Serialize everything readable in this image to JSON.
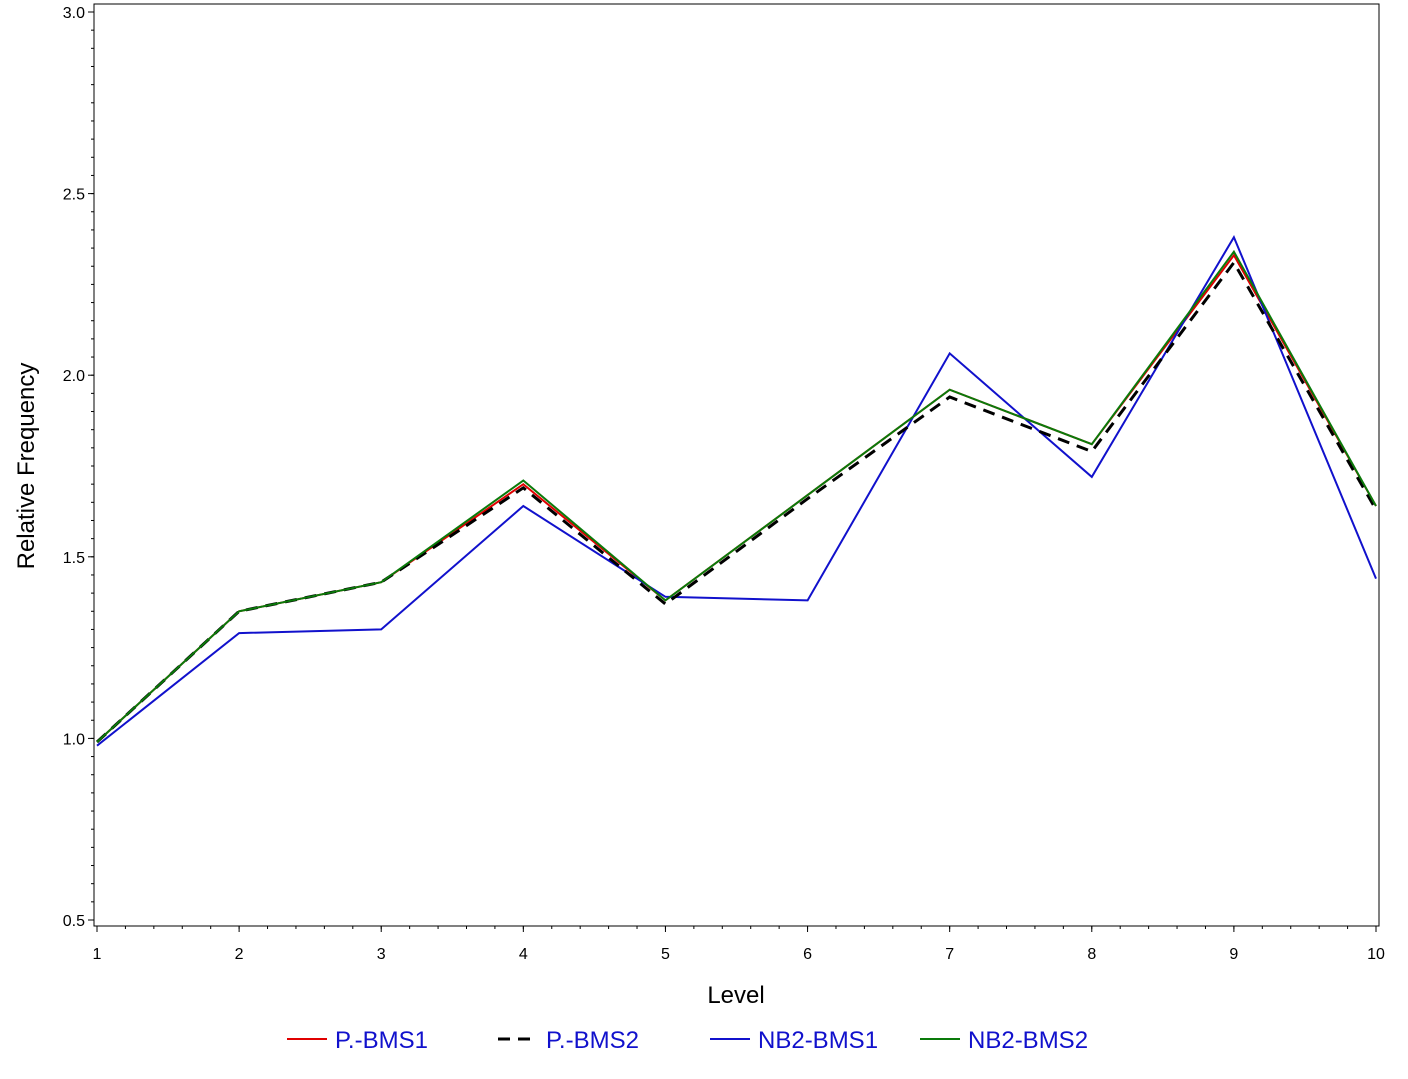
{
  "chart_data": {
    "type": "line",
    "title": "",
    "xlabel": "Level",
    "ylabel": "Relative Frequency",
    "x": [
      1,
      2,
      3,
      4,
      5,
      6,
      7,
      8,
      9,
      10
    ],
    "xlim": [
      1,
      10
    ],
    "ylim": [
      0.5,
      3.0
    ],
    "x_ticks": [
      "1",
      "2",
      "3",
      "4",
      "5",
      "6",
      "7",
      "8",
      "9",
      "10"
    ],
    "y_ticks": [
      "0.5",
      "1.0",
      "1.5",
      "2.0",
      "2.5",
      "3.0"
    ],
    "grid": false,
    "legend_position": "bottom",
    "legend_text_color": "#1111cc",
    "series": [
      {
        "name": "P.-BMS1",
        "color": "#e00000",
        "dash": "solid",
        "values": [
          0.99,
          1.35,
          1.43,
          1.7,
          1.38,
          1.67,
          1.96,
          1.81,
          2.33,
          1.64
        ]
      },
      {
        "name": "P.-BMS2",
        "color": "#000000",
        "dash": "dashed",
        "values": [
          0.99,
          1.35,
          1.43,
          1.69,
          1.37,
          1.66,
          1.94,
          1.79,
          2.31,
          1.63
        ]
      },
      {
        "name": "NB2-BMS1",
        "color": "#1111cc",
        "dash": "solid",
        "values": [
          0.98,
          1.29,
          1.3,
          1.64,
          1.39,
          1.38,
          2.06,
          1.72,
          2.38,
          1.44
        ]
      },
      {
        "name": "NB2-BMS2",
        "color": "#0a7a0a",
        "dash": "solid",
        "values": [
          0.99,
          1.35,
          1.43,
          1.71,
          1.38,
          1.67,
          1.96,
          1.81,
          2.34,
          1.64
        ]
      }
    ]
  }
}
